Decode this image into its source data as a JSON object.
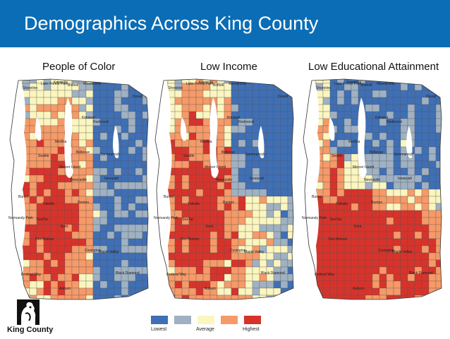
{
  "header": {
    "title": "Demographics Across King County"
  },
  "colors": {
    "banner": "#0a6db5",
    "water": "#ffffff",
    "background": "#ffffff"
  },
  "maps": [
    {
      "title": "People of Color",
      "places": [
        "Shoreline",
        "Lake Forest Park",
        "Kenmore",
        "Bothell",
        "Woodinville",
        "Duvall",
        "Kirkland",
        "Redmond",
        "Seattle",
        "Medina",
        "Bellevue",
        "Sammamish",
        "Mercer Island",
        "Issaquah",
        "Newcastle",
        "Burien",
        "Renton",
        "Tukwila",
        "Normandy Park",
        "SeaTac",
        "Des Moines",
        "Kent",
        "Covington",
        "Maple Valley",
        "Federal Way",
        "Black Diamond",
        "Auburn"
      ]
    },
    {
      "title": "Low Income",
      "places": [
        "Shoreline",
        "Lake Forest Park",
        "Kenmore",
        "Bothell",
        "Woodinville",
        "Duvall",
        "Kirkland",
        "Redmond",
        "Seattle",
        "Medina",
        "Bellevue",
        "Sammamish",
        "Mercer Island",
        "Issaquah",
        "Newcastle",
        "Burien",
        "Renton",
        "Tukwila",
        "Normandy Park",
        "SeaTac",
        "Des Moines",
        "Kent",
        "Covington",
        "Maple Valley",
        "Federal Way",
        "Black Diamond",
        "Auburn"
      ]
    },
    {
      "title": "Low Educational Attainment",
      "places": [
        "Shoreline",
        "Lake Forest Park",
        "Kenmore",
        "Bothell",
        "Woodinville",
        "Duvall",
        "Kirkland",
        "Redmond",
        "Seattle",
        "Medina",
        "Bellevue",
        "Sammamish",
        "Mercer Island",
        "Issaquah",
        "Newcastle",
        "Burien",
        "Renton",
        "Tukwila",
        "Normandy Park",
        "SeaTac",
        "Des Moines",
        "Kent",
        "Covington",
        "Maple Valley",
        "Federal Way",
        "Black Diamond",
        "Auburn"
      ]
    }
  ],
  "legend": {
    "items": [
      {
        "label": "Lowest",
        "color": "#3f6fb5"
      },
      {
        "label": "",
        "color": "#9fb1c2"
      },
      {
        "label": "Average",
        "color": "#fbf6bf"
      },
      {
        "label": "",
        "color": "#f59a68"
      },
      {
        "label": "Highest",
        "color": "#d7332b"
      }
    ]
  },
  "logo": {
    "text": "King County"
  }
}
